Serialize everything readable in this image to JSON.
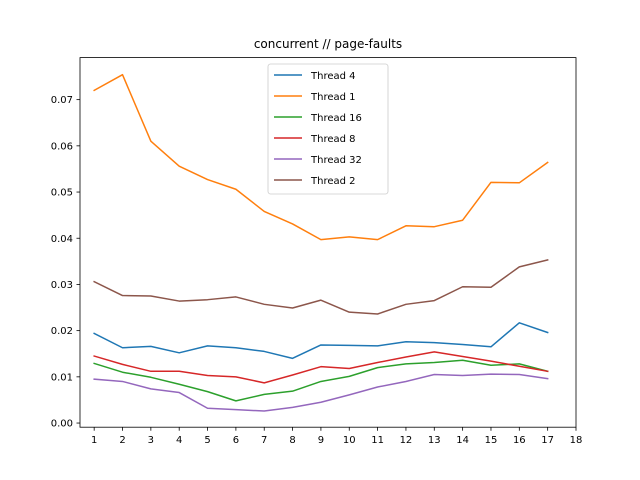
{
  "chart_data": {
    "type": "line",
    "title": "concurrent // page-faults",
    "xlabel": "",
    "ylabel": "",
    "xlim": [
      0.5,
      18.0
    ],
    "ylim": [
      -0.0009,
      0.0791
    ],
    "x_ticks": [
      "1",
      "2",
      "3",
      "4",
      "5",
      "6",
      "7",
      "8",
      "9",
      "10",
      "11",
      "12",
      "13",
      "14",
      "15",
      "16",
      "17",
      "18"
    ],
    "y_ticks": [
      "0.00",
      "0.01",
      "0.02",
      "0.03",
      "0.04",
      "0.05",
      "0.06",
      "0.07"
    ],
    "legend_position": "top-center",
    "grid": false,
    "x": [
      1,
      2,
      3,
      4,
      5,
      6,
      7,
      8,
      9,
      10,
      11,
      12,
      13,
      14,
      15,
      16,
      17
    ],
    "series": [
      {
        "name": "Thread 4",
        "color": "#1f77b4",
        "values": [
          0.0194,
          0.0163,
          0.0166,
          0.0152,
          0.0167,
          0.0163,
          0.0155,
          0.014,
          0.0169,
          0.0168,
          0.0167,
          0.0176,
          0.0174,
          0.017,
          0.0165,
          0.0217,
          0.0196
        ]
      },
      {
        "name": "Thread 1",
        "color": "#ff7f0e",
        "values": [
          0.072,
          0.0754,
          0.061,
          0.0556,
          0.0527,
          0.0506,
          0.0458,
          0.0431,
          0.0397,
          0.0403,
          0.0397,
          0.0427,
          0.0425,
          0.0439,
          0.0521,
          0.052,
          0.0564
        ]
      },
      {
        "name": "Thread 16",
        "color": "#2ca02c",
        "values": [
          0.0129,
          0.011,
          0.0099,
          0.0084,
          0.0068,
          0.0048,
          0.0062,
          0.0069,
          0.009,
          0.0101,
          0.012,
          0.0128,
          0.0131,
          0.0136,
          0.0125,
          0.0128,
          0.0112
        ]
      },
      {
        "name": "Thread 8",
        "color": "#d62728",
        "values": [
          0.0145,
          0.0127,
          0.0112,
          0.0112,
          0.0103,
          0.01,
          0.0087,
          0.0104,
          0.0122,
          0.0118,
          0.0131,
          0.0143,
          0.0154,
          0.0144,
          0.0134,
          0.0123,
          0.0112
        ]
      },
      {
        "name": "Thread 32",
        "color": "#9467bd",
        "values": [
          0.0095,
          0.009,
          0.0074,
          0.0066,
          0.0032,
          0.0029,
          0.0026,
          0.0034,
          0.0045,
          0.0061,
          0.0078,
          0.009,
          0.0105,
          0.0103,
          0.0106,
          0.0105,
          0.0096
        ]
      },
      {
        "name": "Thread 2",
        "color": "#8c564b",
        "values": [
          0.0306,
          0.0276,
          0.0275,
          0.0264,
          0.0267,
          0.0273,
          0.0257,
          0.0249,
          0.0266,
          0.024,
          0.0236,
          0.0257,
          0.0265,
          0.0295,
          0.0294,
          0.0338,
          0.0353
        ]
      }
    ]
  }
}
